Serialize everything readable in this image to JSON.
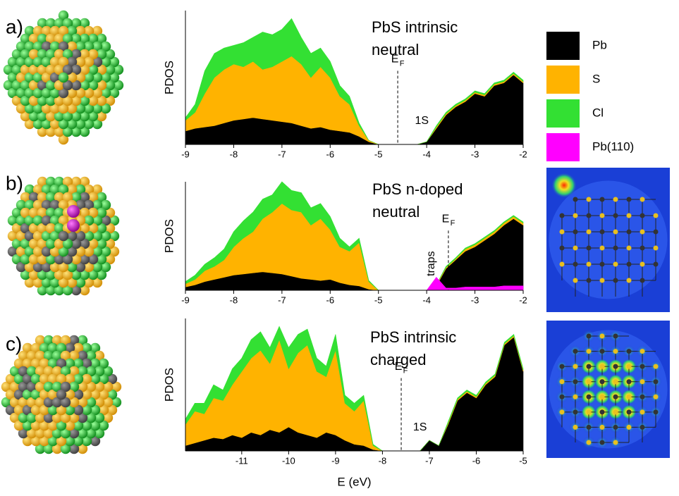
{
  "chart_data": [
    {
      "type": "area",
      "panel_label": "a)",
      "title": [
        "PbS intrinsic",
        "neutral"
      ],
      "ylabel": "PDOS",
      "xlim": [
        -9,
        -2
      ],
      "ylim": [
        0,
        100
      ],
      "xticks": [
        -9,
        -8,
        -7,
        -6,
        -5,
        -4,
        -3,
        -2
      ],
      "x": [
        -9,
        -8.8,
        -8.6,
        -8.4,
        -8.2,
        -8,
        -7.8,
        -7.6,
        -7.4,
        -7.2,
        -7,
        -6.8,
        -6.6,
        -6.4,
        -6.2,
        -6,
        -5.8,
        -5.6,
        -5.4,
        -5.2,
        -5,
        -4.8,
        -4.6,
        -4.4,
        -4.2,
        -4,
        -3.8,
        -3.6,
        -3.4,
        -3.2,
        -3,
        -2.8,
        -2.6,
        -2.4,
        -2.2,
        -2
      ],
      "series": [
        {
          "color": "#000000",
          "values": [
            10,
            12,
            13,
            14,
            16,
            18,
            19,
            20,
            19,
            18,
            17,
            16,
            14,
            12,
            13,
            11,
            10,
            9,
            6,
            2,
            0,
            0,
            0,
            0,
            0,
            2,
            12,
            22,
            28,
            32,
            38,
            36,
            44,
            46,
            52,
            46
          ]
        },
        {
          "color": "#ffb300",
          "values": [
            8,
            12,
            25,
            36,
            40,
            42,
            39,
            42,
            37,
            40,
            45,
            50,
            46,
            38,
            45,
            39,
            26,
            21,
            8,
            1,
            0,
            0,
            0,
            0,
            0,
            0,
            1,
            1,
            1,
            1,
            1,
            1,
            1,
            1,
            1,
            1
          ]
        },
        {
          "color": "#33e033",
          "values": [
            2,
            6,
            17,
            18,
            16,
            14,
            18,
            18,
            28,
            24,
            24,
            28,
            20,
            18,
            14,
            12,
            8,
            6,
            2,
            0,
            0,
            0,
            0,
            0,
            0,
            0,
            1,
            1,
            1,
            1,
            1,
            1,
            1,
            1,
            1,
            1
          ]
        }
      ],
      "fermi": {
        "x": -4.6,
        "label": "E",
        "sub": "F"
      },
      "annotations": [
        {
          "text": "1S",
          "x": -4.1
        }
      ]
    },
    {
      "type": "area",
      "panel_label": "b)",
      "title": [
        "PbS n-doped",
        "neutral"
      ],
      "ylabel": "PDOS",
      "xlim": [
        -9,
        -2
      ],
      "ylim": [
        0,
        100
      ],
      "xticks": [
        -9,
        -8,
        -7,
        -6,
        -5,
        -4,
        -3,
        -2
      ],
      "x": [
        -9,
        -8.8,
        -8.6,
        -8.4,
        -8.2,
        -8,
        -7.8,
        -7.6,
        -7.4,
        -7.2,
        -7,
        -6.8,
        -6.6,
        -6.4,
        -6.2,
        -6,
        -5.8,
        -5.6,
        -5.4,
        -5.2,
        -5,
        -4.8,
        -4.6,
        -4.4,
        -4.2,
        -4,
        -3.8,
        -3.6,
        -3.4,
        -3.2,
        -3,
        -2.8,
        -2.6,
        -2.4,
        -2.2,
        -2
      ],
      "series": [
        {
          "name": "Pb",
          "color": "#000000",
          "values": [
            3,
            5,
            8,
            10,
            12,
            14,
            15,
            16,
            17,
            16,
            15,
            13,
            11,
            10,
            9,
            10,
            7,
            5,
            4,
            1,
            0,
            0,
            0,
            0,
            0,
            0,
            4,
            20,
            28,
            36,
            40,
            46,
            52,
            60,
            66,
            60
          ]
        },
        {
          "name": "S",
          "color": "#ffb300",
          "values": [
            3,
            5,
            10,
            12,
            16,
            26,
            33,
            38,
            49,
            56,
            65,
            61,
            61,
            50,
            57,
            46,
            33,
            31,
            40,
            7,
            0,
            0,
            0,
            0,
            0,
            0,
            1,
            1,
            1,
            2,
            2,
            2,
            2,
            2,
            2,
            2
          ]
        },
        {
          "name": "Cl",
          "color": "#33e033",
          "values": [
            2,
            4,
            6,
            8,
            10,
            14,
            16,
            18,
            18,
            16,
            20,
            18,
            18,
            16,
            14,
            12,
            8,
            4,
            4,
            1,
            0,
            0,
            0,
            0,
            0,
            0,
            0,
            1,
            1,
            1,
            1,
            1,
            1,
            1,
            1,
            1
          ]
        },
        {
          "name": "Pb(110)",
          "color": "#ff00ff",
          "overlay": true,
          "values": [
            0,
            0,
            0,
            0,
            0,
            0,
            0,
            0,
            0,
            0,
            0,
            0,
            0,
            0,
            0,
            0,
            0,
            0,
            0,
            0,
            0,
            0,
            0,
            0,
            0,
            0,
            12,
            2,
            2,
            3,
            3,
            3,
            3,
            4,
            4,
            4
          ]
        }
      ],
      "fermi": {
        "x": -3.55,
        "label": "E",
        "sub": "F"
      },
      "annotations": [
        {
          "text": "traps",
          "x": -3.9,
          "vertical": true
        }
      ]
    },
    {
      "type": "area",
      "panel_label": "c)",
      "title": [
        "PbS intrinsic",
        "charged"
      ],
      "ylabel": "PDOS",
      "xlabel": "E (eV)",
      "xlim": [
        -12.2,
        -5
      ],
      "ylim": [
        0,
        100
      ],
      "xticks": [
        -11,
        -10,
        -9,
        -8,
        -7,
        -6,
        -5
      ],
      "x": [
        -12.2,
        -12,
        -11.8,
        -11.6,
        -11.4,
        -11.2,
        -11,
        -10.8,
        -10.6,
        -10.4,
        -10.2,
        -10,
        -9.8,
        -9.6,
        -9.4,
        -9.2,
        -9,
        -8.8,
        -8.6,
        -8.4,
        -8.2,
        -8,
        -7.8,
        -7.6,
        -7.4,
        -7.2,
        -7,
        -6.8,
        -6.6,
        -6.4,
        -6.2,
        -6,
        -5.8,
        -5.6,
        -5.4,
        -5.2,
        -5
      ],
      "series": [
        {
          "color": "#000000",
          "values": [
            4,
            6,
            8,
            10,
            9,
            12,
            10,
            14,
            12,
            16,
            14,
            18,
            14,
            12,
            10,
            14,
            12,
            8,
            5,
            4,
            1,
            0,
            0,
            0,
            0,
            0,
            8,
            4,
            20,
            38,
            44,
            40,
            50,
            56,
            80,
            86,
            60
          ]
        },
        {
          "color": "#ffb300",
          "values": [
            16,
            24,
            20,
            30,
            29,
            38,
            50,
            56,
            64,
            50,
            70,
            44,
            60,
            68,
            50,
            42,
            64,
            28,
            25,
            34,
            3,
            0,
            0,
            0,
            0,
            0,
            0,
            0,
            1,
            1,
            1,
            1,
            1,
            1,
            1,
            1,
            1
          ]
        },
        {
          "color": "#33e033",
          "values": [
            4,
            6,
            8,
            10,
            8,
            12,
            10,
            14,
            14,
            12,
            10,
            16,
            14,
            12,
            10,
            8,
            12,
            6,
            6,
            4,
            1,
            0,
            0,
            0,
            0,
            0,
            0,
            0,
            1,
            1,
            1,
            1,
            1,
            1,
            1,
            1,
            1
          ]
        }
      ],
      "fermi": {
        "x": -7.6,
        "label": "E",
        "sub": "F"
      },
      "annotations": [
        {
          "text": "1S",
          "x": -7.2
        }
      ]
    }
  ]
}
